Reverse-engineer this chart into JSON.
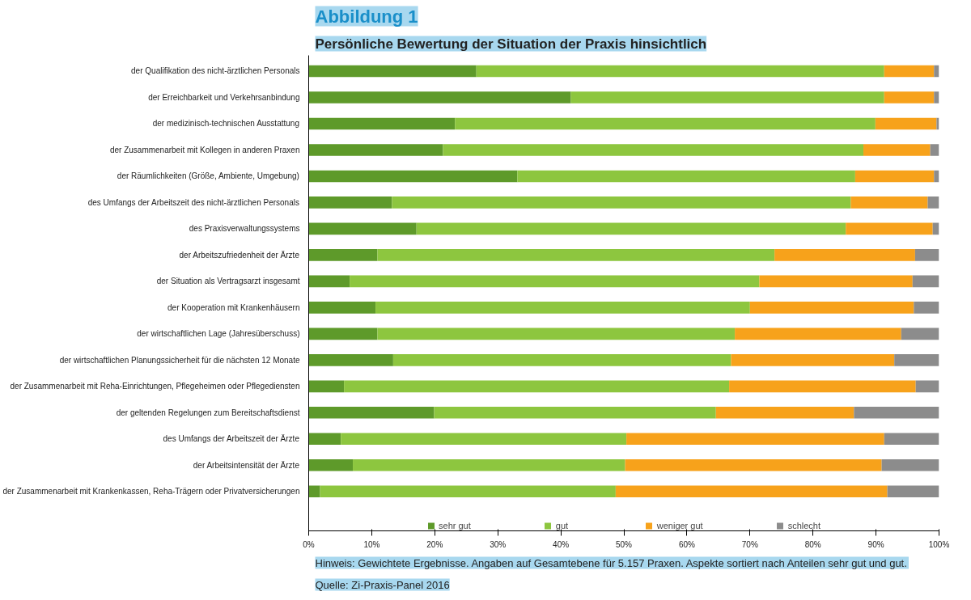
{
  "chart_data": {
    "type": "bar",
    "orientation": "horizontal",
    "stacked": true,
    "title": "Abbildung 1",
    "subtitle": "Persönliche Bewertung der Situation der Praxis hinsichtlich",
    "categories": [
      "der Qualifikation des nicht-ärztlichen Personals",
      "der Erreichbarkeit und Verkehrsanbindung",
      "der medizinisch-technischen Ausstattung",
      "der Zusammenarbeit mit Kollegen in anderen Praxen",
      "der Räumlichkeiten (Größe, Ambiente, Umgebung)",
      "des Umfangs der Arbeitszeit des nicht-ärztlichen Personals",
      "des Praxisverwaltungssystems",
      "der Arbeitszufriedenheit der Ärzte",
      "der Situation als Vertragsarzt insgesamt",
      "der Kooperation mit Krankenhäusern",
      "der wirtschaftlichen Lage (Jahresüberschuss)",
      "der wirtschaftlichen Planungssicherheit für die nächsten 12 Monate",
      "der Zusammenarbeit mit Reha-Einrichtungen, Pflegeheimen oder Pflegediensten",
      "der geltenden Regelungen zum Bereitschaftsdienst",
      "des Umfangs der Arbeitszeit der Ärzte",
      "der Arbeitsintensität der Ärzte",
      "der Zusammenarbeit mit Krankenkassen, Reha-Trägern oder Privatversicherungen"
    ],
    "series": [
      {
        "name": "sehr gut",
        "color": "#5e9a2a",
        "values": [
          26.6,
          41.6,
          23.2,
          21.3,
          33.1,
          13.2,
          17.1,
          10.9,
          6.5,
          10.6,
          10.9,
          13.4,
          5.6,
          19.9,
          5.1,
          7.0,
          1.8
        ]
      },
      {
        "name": "gut",
        "color": "#8dc63f",
        "values": [
          64.7,
          49.7,
          66.7,
          66.7,
          53.6,
          72.8,
          68.1,
          63.0,
          65.0,
          59.4,
          56.7,
          53.6,
          61.1,
          44.7,
          45.3,
          43.2,
          46.9
        ]
      },
      {
        "name": "weniger gut",
        "color": "#f7a21b",
        "values": [
          7.9,
          7.9,
          9.7,
          10.6,
          12.5,
          12.2,
          13.8,
          22.3,
          24.3,
          26.0,
          26.4,
          25.9,
          29.6,
          21.9,
          40.9,
          40.7,
          43.1
        ]
      },
      {
        "name": "schlecht",
        "color": "#8c8c8c",
        "values": [
          0.8,
          0.8,
          0.4,
          1.4,
          0.8,
          1.8,
          1.0,
          3.8,
          4.2,
          4.0,
          6.0,
          7.1,
          3.7,
          13.5,
          8.7,
          9.1,
          8.2
        ]
      }
    ],
    "xlim": [
      0,
      100
    ],
    "xticks": [
      {
        "value": 0,
        "label": "0%"
      },
      {
        "value": 10,
        "label": "10%"
      },
      {
        "value": 20,
        "label": "20%"
      },
      {
        "value": 30,
        "label": "30%"
      },
      {
        "value": 40,
        "label": "40%"
      },
      {
        "value": 50,
        "label": "50%"
      },
      {
        "value": 60,
        "label": "60%"
      },
      {
        "value": 70,
        "label": "70%"
      },
      {
        "value": 80,
        "label": "80%"
      },
      {
        "value": 90,
        "label": "90%"
      },
      {
        "value": 100,
        "label": "100%"
      }
    ],
    "legend": "bottom",
    "grid": false,
    "annotations": [
      "Hinweis: Gewichtete Ergebnisse. Angaben auf Gesamtebene für 5.157 Praxen. Aspekte sortiert nach Anteilen sehr gut und gut.",
      "Quelle: Zi-Praxis-Panel 2016"
    ]
  }
}
